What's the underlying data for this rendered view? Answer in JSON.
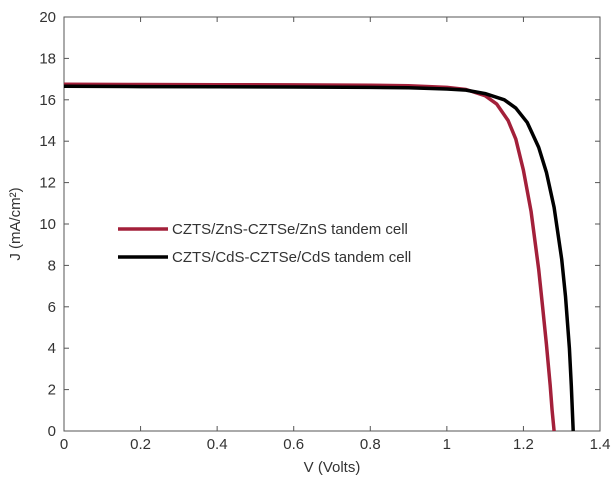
{
  "chart_data": {
    "type": "line",
    "xlabel": "V (Volts)",
    "ylabel": "J (mA/cm²)",
    "xlim": [
      0,
      1.4
    ],
    "ylim": [
      0,
      20
    ],
    "xticks": [
      0,
      0.2,
      0.4,
      0.6,
      0.8,
      1,
      1.2,
      1.4
    ],
    "xtick_labels": [
      "0",
      "0.2",
      "0.4",
      "0.6",
      "0.8",
      "1",
      "1.2",
      "1.4"
    ],
    "yticks": [
      0,
      2,
      4,
      6,
      8,
      10,
      12,
      14,
      16,
      18,
      20
    ],
    "ytick_labels": [
      "0",
      "2",
      "4",
      "6",
      "8",
      "10",
      "12",
      "14",
      "16",
      "18",
      "20"
    ],
    "grid": false,
    "legend_position": "center-left",
    "series": [
      {
        "name": "CZTS/ZnS-CZTSe/ZnS tandem cell",
        "color": "#a3203a",
        "x": [
          0,
          0.2,
          0.4,
          0.6,
          0.8,
          0.9,
          1.0,
          1.05,
          1.1,
          1.13,
          1.16,
          1.18,
          1.2,
          1.22,
          1.24,
          1.25,
          1.26,
          1.27,
          1.275,
          1.28
        ],
        "y": [
          16.75,
          16.74,
          16.73,
          16.72,
          16.7,
          16.68,
          16.6,
          16.5,
          16.2,
          15.8,
          15.0,
          14.1,
          12.6,
          10.6,
          7.8,
          6.0,
          4.2,
          2.2,
          1.0,
          0
        ]
      },
      {
        "name": "CZTS/CdS-CZTSe/CdS tandem cell",
        "color": "#000000",
        "x": [
          0,
          0.2,
          0.4,
          0.6,
          0.8,
          0.9,
          1.0,
          1.05,
          1.1,
          1.15,
          1.18,
          1.21,
          1.24,
          1.26,
          1.28,
          1.3,
          1.31,
          1.32,
          1.325,
          1.33
        ],
        "y": [
          16.65,
          16.64,
          16.63,
          16.62,
          16.6,
          16.58,
          16.52,
          16.47,
          16.3,
          16.0,
          15.6,
          14.9,
          13.7,
          12.5,
          10.8,
          8.3,
          6.5,
          4.0,
          2.2,
          0
        ]
      }
    ]
  }
}
